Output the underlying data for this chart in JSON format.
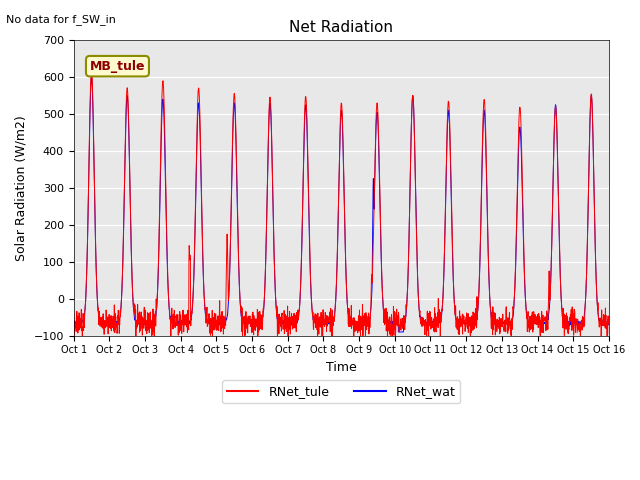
{
  "title": "Net Radiation",
  "subtitle": "No data for f_SW_in",
  "ylabel": "Solar Radiation (W/m2)",
  "xlabel": "Time",
  "legend_label1": "RNet_tule",
  "legend_label2": "RNet_wat",
  "legend_station": "MB_tule",
  "color1": "#FF0000",
  "color2": "#0000FF",
  "ylim": [
    -100,
    700
  ],
  "yticks": [
    -100,
    0,
    100,
    200,
    300,
    400,
    500,
    600,
    700
  ],
  "background_color": "#e8e8e8",
  "n_days": 15,
  "points_per_day": 144,
  "peaks_tule": [
    620,
    570,
    590,
    570,
    555,
    545,
    548,
    530,
    530,
    550,
    535,
    540,
    520,
    520,
    555
  ],
  "peaks_wat": [
    600,
    550,
    540,
    530,
    530,
    530,
    525,
    510,
    505,
    550,
    510,
    510,
    465,
    525,
    550
  ],
  "night_base": -65,
  "figsize": [
    6.4,
    4.8
  ],
  "dpi": 100
}
